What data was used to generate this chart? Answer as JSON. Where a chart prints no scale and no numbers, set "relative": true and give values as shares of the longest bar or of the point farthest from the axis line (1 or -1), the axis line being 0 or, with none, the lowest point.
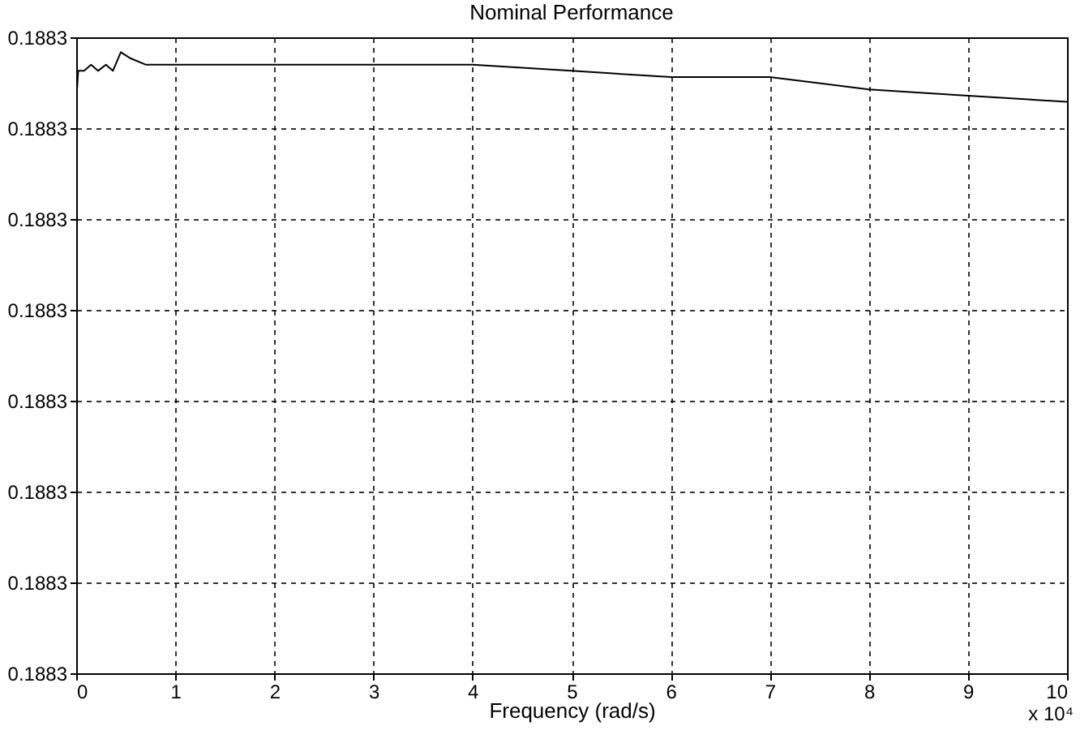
{
  "chart_data": {
    "type": "line",
    "title": "Nominal Performance",
    "xlabel": "Frequency (rad/s)",
    "relative": true,
    "x": [
      0,
      0.02,
      0.08,
      0.15,
      0.22,
      0.3,
      0.37,
      0.45,
      0.55,
      0.7,
      2,
      3,
      4,
      5,
      6,
      7,
      8,
      9,
      10
    ],
    "series": [
      {
        "color": "#000000",
        "values": [
          0.92,
          0.97,
          0.97,
          0.98,
          0.97,
          0.98,
          0.97,
          1,
          0.99,
          0.98,
          0.98,
          0.98,
          0.98,
          0.97,
          0.96,
          0.96,
          0.94,
          0.93,
          0.92
        ]
      }
    ],
    "xlim": [
      0,
      10
    ],
    "xticks": [
      0,
      1,
      2,
      3,
      4,
      5,
      6,
      7,
      8,
      9,
      10
    ],
    "annotations": [
      "x 10⁴",
      "0.1883",
      "0.1883",
      "0.1883",
      "0.1883",
      "0.1883",
      "0.1883",
      "0.1883",
      "0.1883"
    ],
    "grid": true,
    "marker": "none",
    "line_style": "solid"
  }
}
